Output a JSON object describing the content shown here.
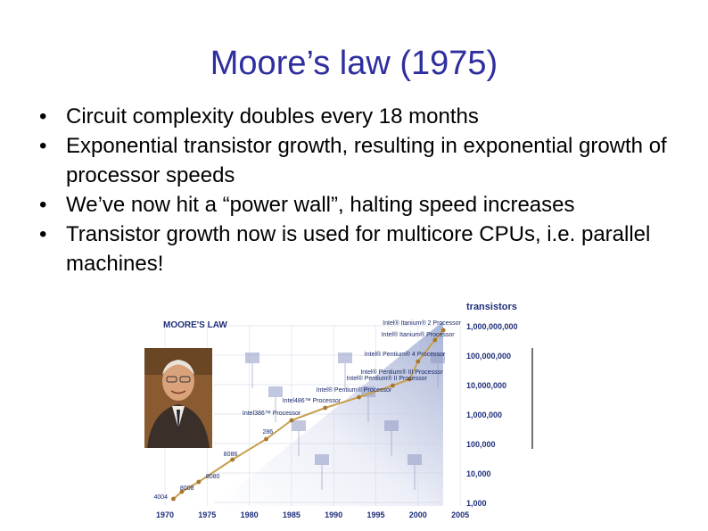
{
  "slide": {
    "title": "Moore’s law (1975)",
    "bullets": [
      "Circuit complexity doubles every 18 months",
      "Exponential transistor growth, resulting in exponential growth of processor speeds",
      "We’ve now hit a “power wall”, halting speed increases",
      "Transistor growth now is used for multicore CPUs, i.e. parallel machines!"
    ],
    "bullet_symbol": "•"
  },
  "figure": {
    "heading": "MOORE'S LAW",
    "y_axis_title": "transistors",
    "y_ticks": [
      "1,000,000,000",
      "100,000,000",
      "10,000,000",
      "1,000,000",
      "100,000",
      "10,000",
      "1,000"
    ],
    "x_ticks": [
      "1970",
      "1975",
      "1980",
      "1985",
      "1990",
      "1995",
      "2000",
      "2005"
    ],
    "processors": [
      {
        "label": "4004",
        "year": 1971
      },
      {
        "label": "8008",
        "year": 1972
      },
      {
        "label": "8080",
        "year": 1974
      },
      {
        "label": "8086",
        "year": 1978
      },
      {
        "label": "286",
        "year": 1982
      },
      {
        "label": "Intel386™ Processor",
        "year": 1985
      },
      {
        "label": "Intel486™ Processor",
        "year": 1989
      },
      {
        "label": "Intel® Pentium® Processor",
        "year": 1993
      },
      {
        "label": "Intel® Pentium® II Processor",
        "year": 1997
      },
      {
        "label": "Intel® Pentium® III Processor",
        "year": 1999
      },
      {
        "label": "Intel® Pentium® 4 Processor",
        "year": 2000
      },
      {
        "label": "Intel® Itanium® Processor",
        "year": 2002
      },
      {
        "label": "Intel® Itanium® 2 Processor",
        "year": 2003
      }
    ],
    "colors": {
      "heading": "#1f2f7a",
      "line": "#c8a050",
      "axis_text": "#1f2f7a",
      "title": "#2e2e9e"
    }
  }
}
